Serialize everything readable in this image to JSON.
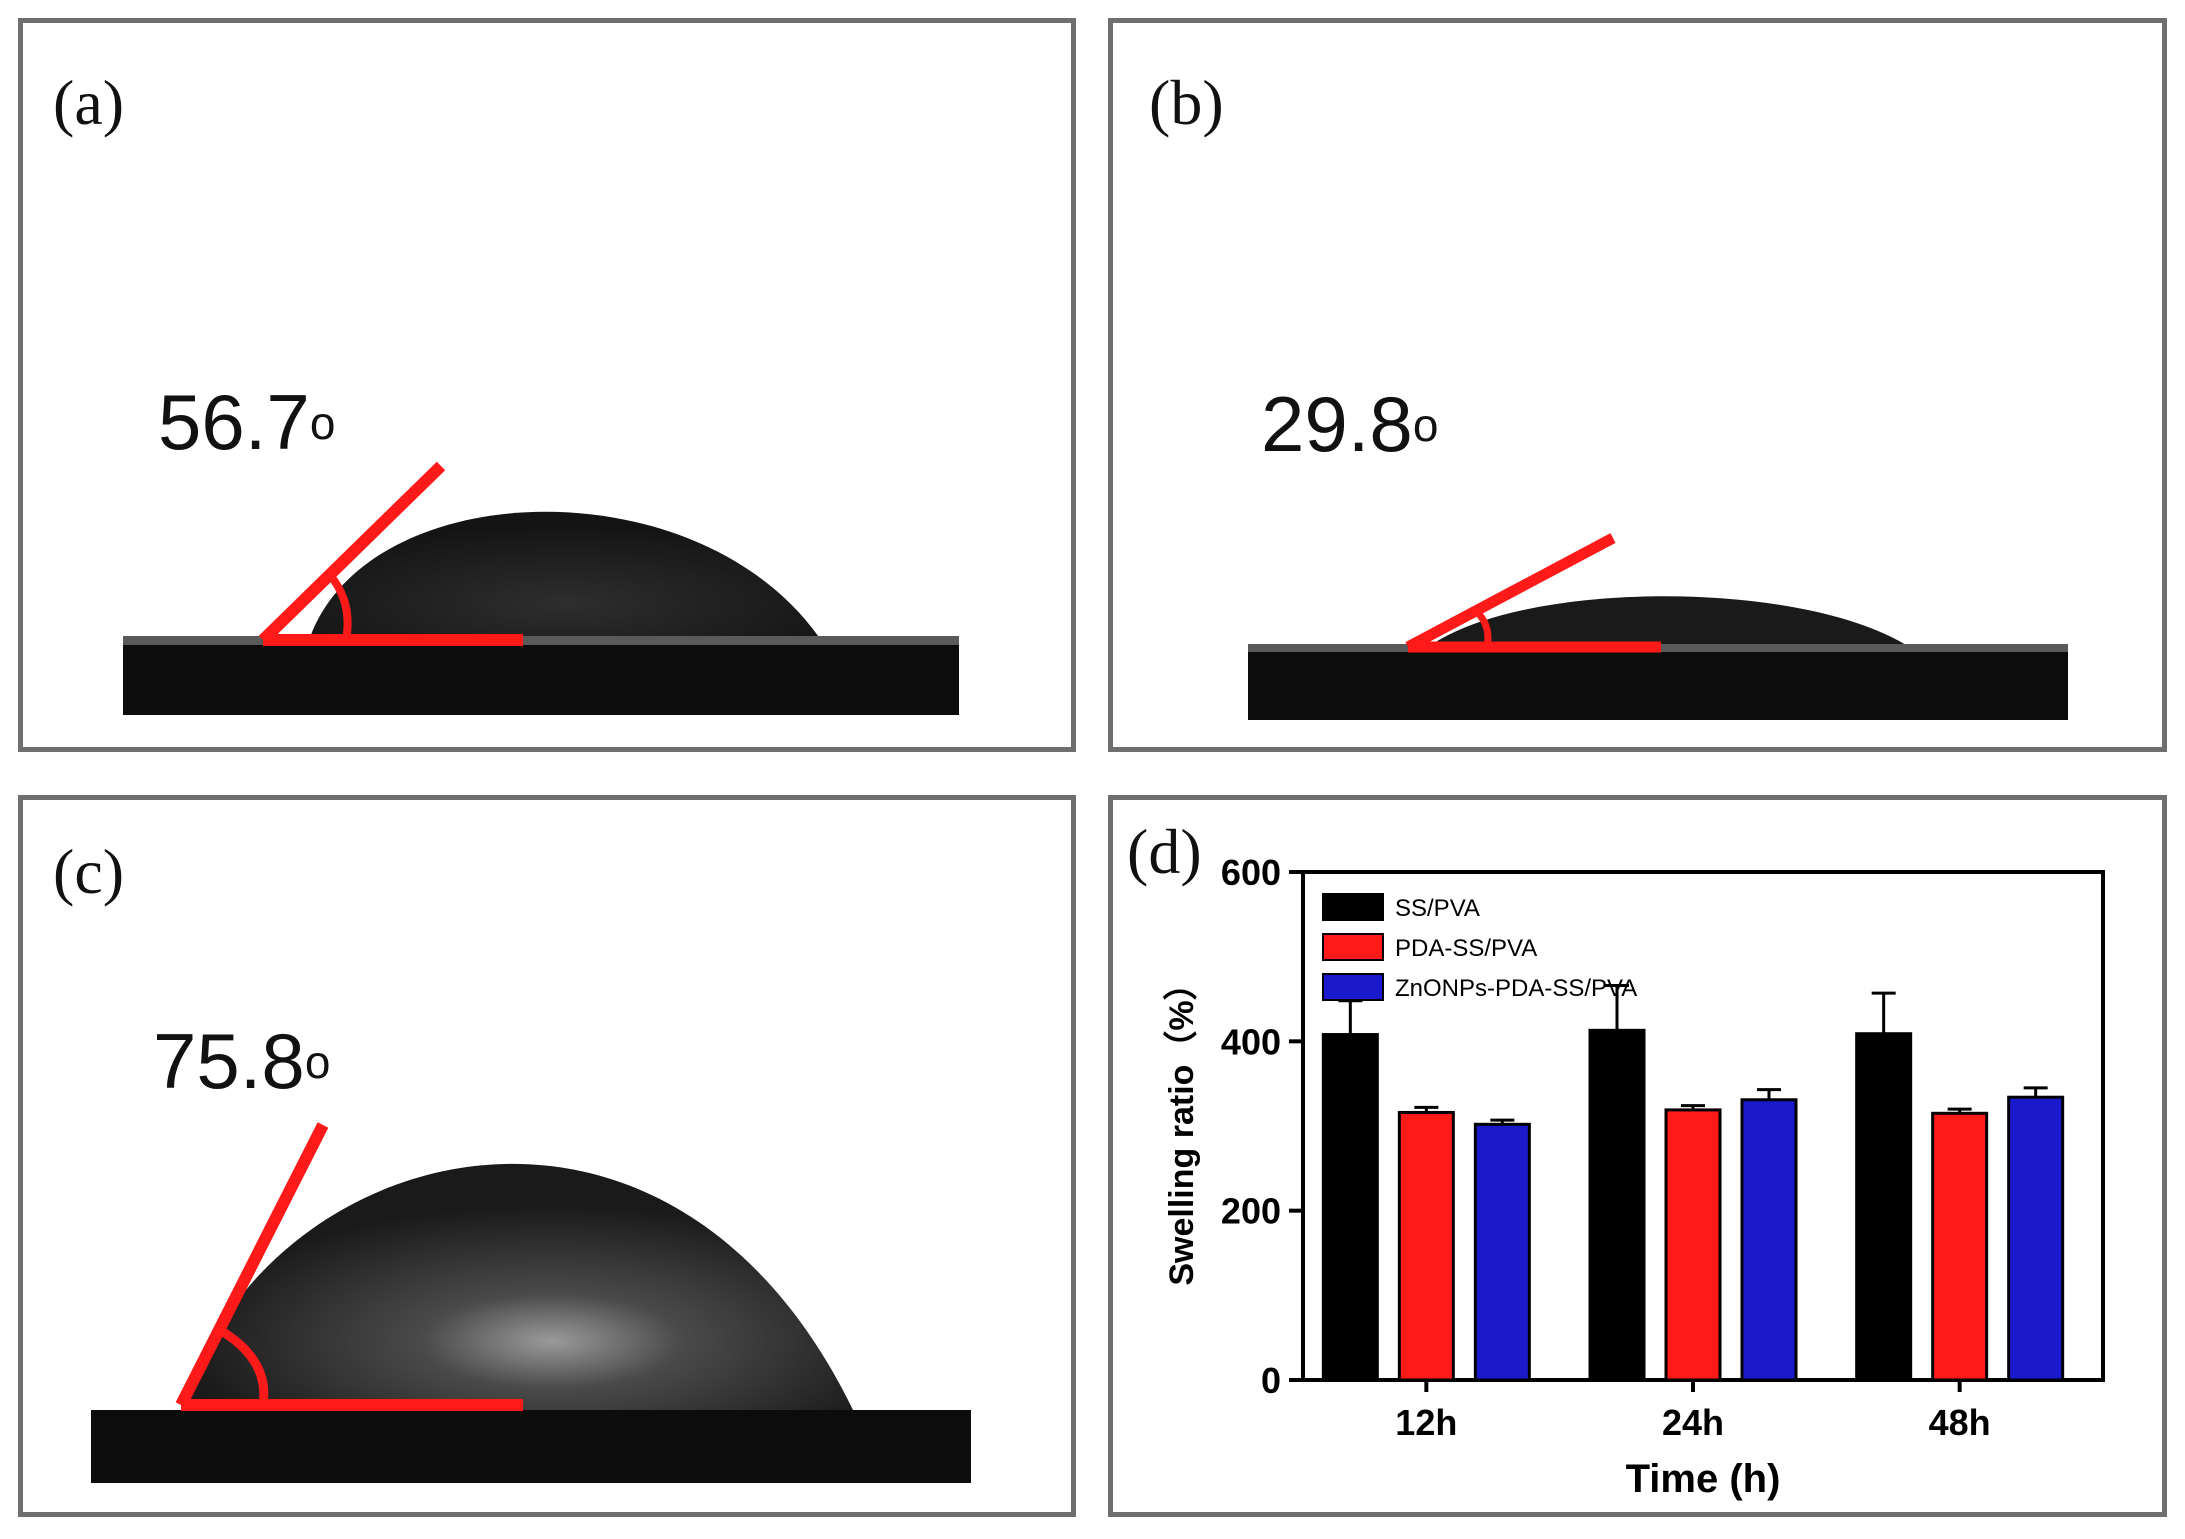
{
  "panels": {
    "a": {
      "label": "(a)",
      "angle_value": "56.7",
      "angle_unit": "o"
    },
    "b": {
      "label": "(b)",
      "angle_value": "29.8",
      "angle_unit": "o"
    },
    "c": {
      "label": "(c)",
      "angle_value": "75.8",
      "angle_unit": "o"
    },
    "d": {
      "label": "(d)"
    }
  },
  "colors": {
    "annotation_line": "#ff1a1a",
    "substrate": "#0c0c0c",
    "droplet": "#1a1a1a",
    "series": [
      "#000000",
      "#ff1a1a",
      "#1a1acc"
    ]
  },
  "chart_data": {
    "type": "bar",
    "categories": [
      "12h",
      "24h",
      "48h"
    ],
    "series": [
      {
        "name": "SS/PVA",
        "values": [
          408,
          413,
          409
        ],
        "errors": [
          40,
          53,
          48
        ]
      },
      {
        "name": "PDA-SS/PVA",
        "values": [
          316,
          319,
          315
        ],
        "errors": [
          6,
          5,
          5
        ]
      },
      {
        "name": "ZnONPs-PDA-SS/PVA",
        "values": [
          302,
          331,
          334
        ],
        "errors": [
          5,
          12,
          11
        ]
      }
    ],
    "xlabel": "Time (h)",
    "ylabel": "Swelling ratio（%）",
    "ylim": [
      0,
      600
    ],
    "yticks": [
      "0",
      "200",
      "400",
      "600"
    ],
    "legend_position": "top-left",
    "grid": false
  }
}
